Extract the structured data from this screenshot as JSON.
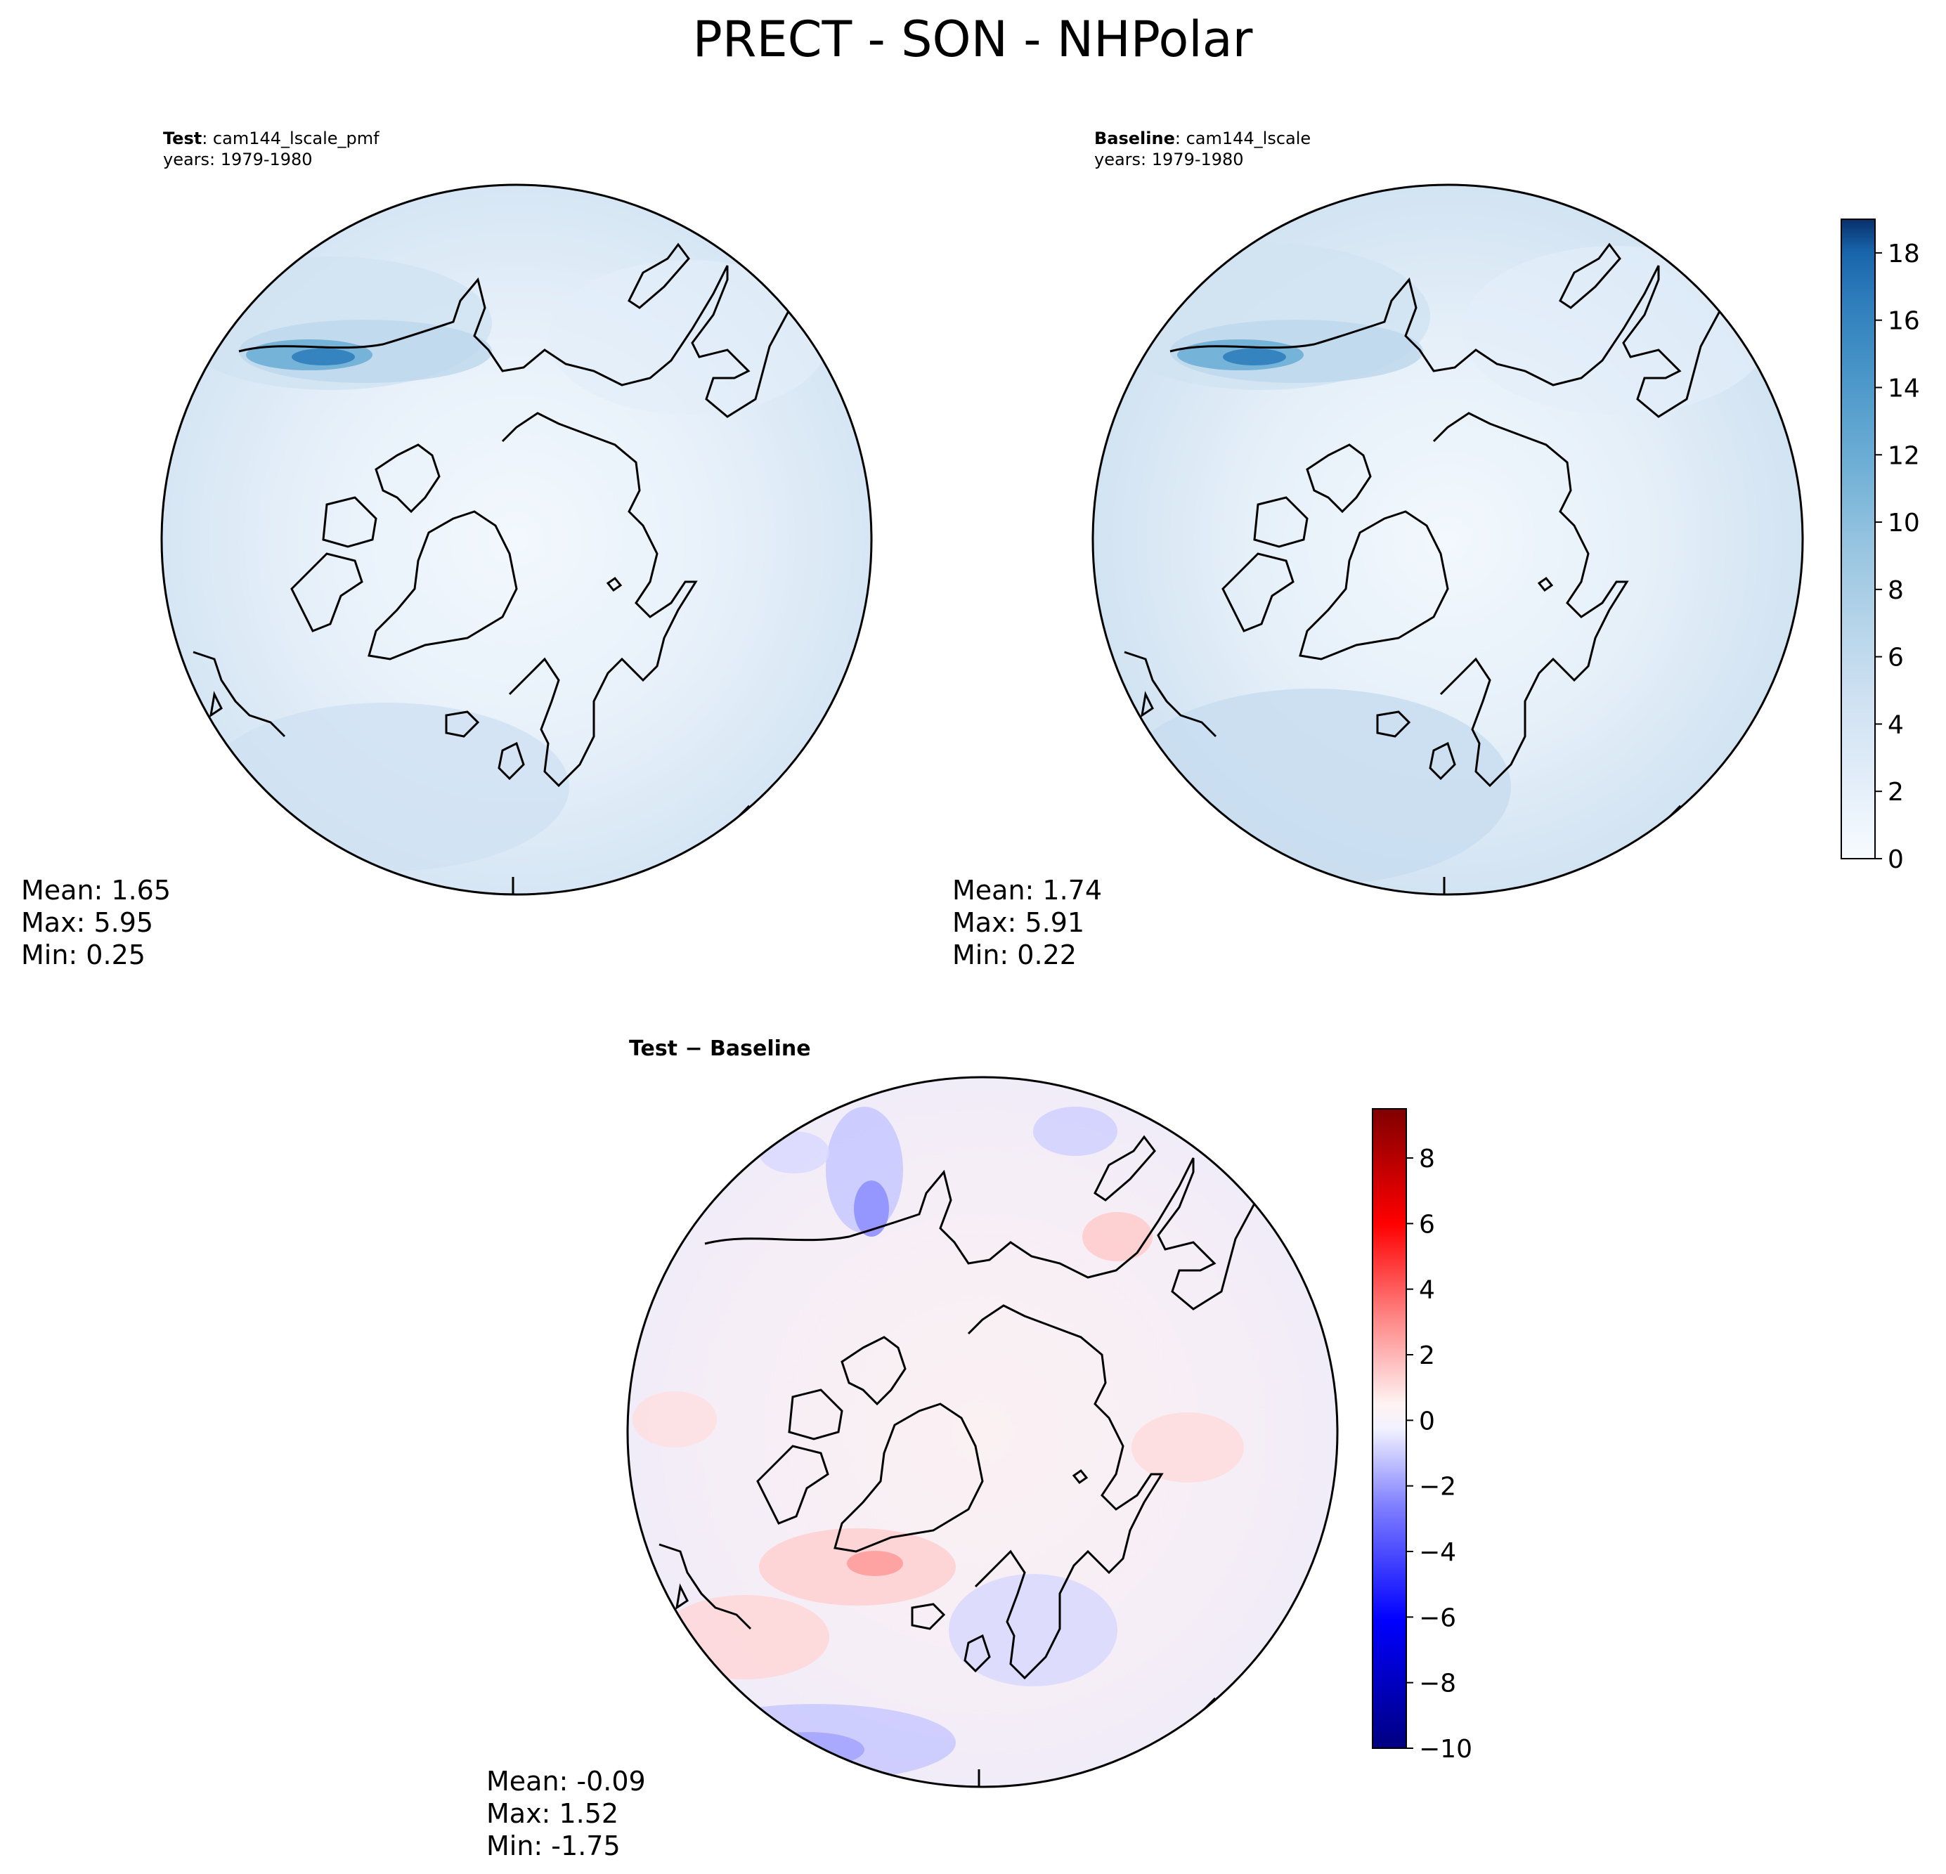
{
  "figure": {
    "title": "PRECT - SON - NHPolar"
  },
  "panels": [
    {
      "id": "test",
      "label_bold": "Test",
      "label_rest": ": cam144_lscale_pmf",
      "years": "years: 1979-1980",
      "stats": {
        "mean": "Mean:  1.65",
        "max": "Max:  5.95",
        "min": "Min:  0.25"
      }
    },
    {
      "id": "baseline",
      "label_bold": "Baseline",
      "label_rest": ": cam144_lscale",
      "years": "years: 1979-1980",
      "stats": {
        "mean": "Mean:  1.74",
        "max": "Max:  5.91",
        "min": "Min:  0.22"
      }
    },
    {
      "id": "diff",
      "label_bold": "Test − Baseline",
      "label_rest": "",
      "years": "",
      "stats": {
        "mean": "Mean: -0.09",
        "max": "Max:  1.52",
        "min": "Min: -1.75"
      }
    }
  ],
  "colorbars": {
    "sequential": {
      "ticks": [
        "0",
        "2",
        "4",
        "6",
        "8",
        "10",
        "12",
        "14",
        "16",
        "18"
      ],
      "range": [
        0,
        19
      ],
      "colors": [
        "#f7fbff",
        "#e3eef9",
        "#cfe1f2",
        "#b5d4e9",
        "#93c3df",
        "#6daed5",
        "#4b97c9",
        "#2f7ebc",
        "#1864aa",
        "#08306b"
      ]
    },
    "diverging": {
      "ticks": [
        "8",
        "6",
        "4",
        "2",
        "0",
        "−2",
        "−4",
        "−6",
        "−8",
        "−10"
      ],
      "range": [
        -10,
        9.5
      ],
      "colors": [
        "#000080",
        "#0000ff",
        "#8080ff",
        "#f2f2ff",
        "#fff2f2",
        "#ff8080",
        "#ff0000",
        "#800000"
      ]
    }
  }
}
